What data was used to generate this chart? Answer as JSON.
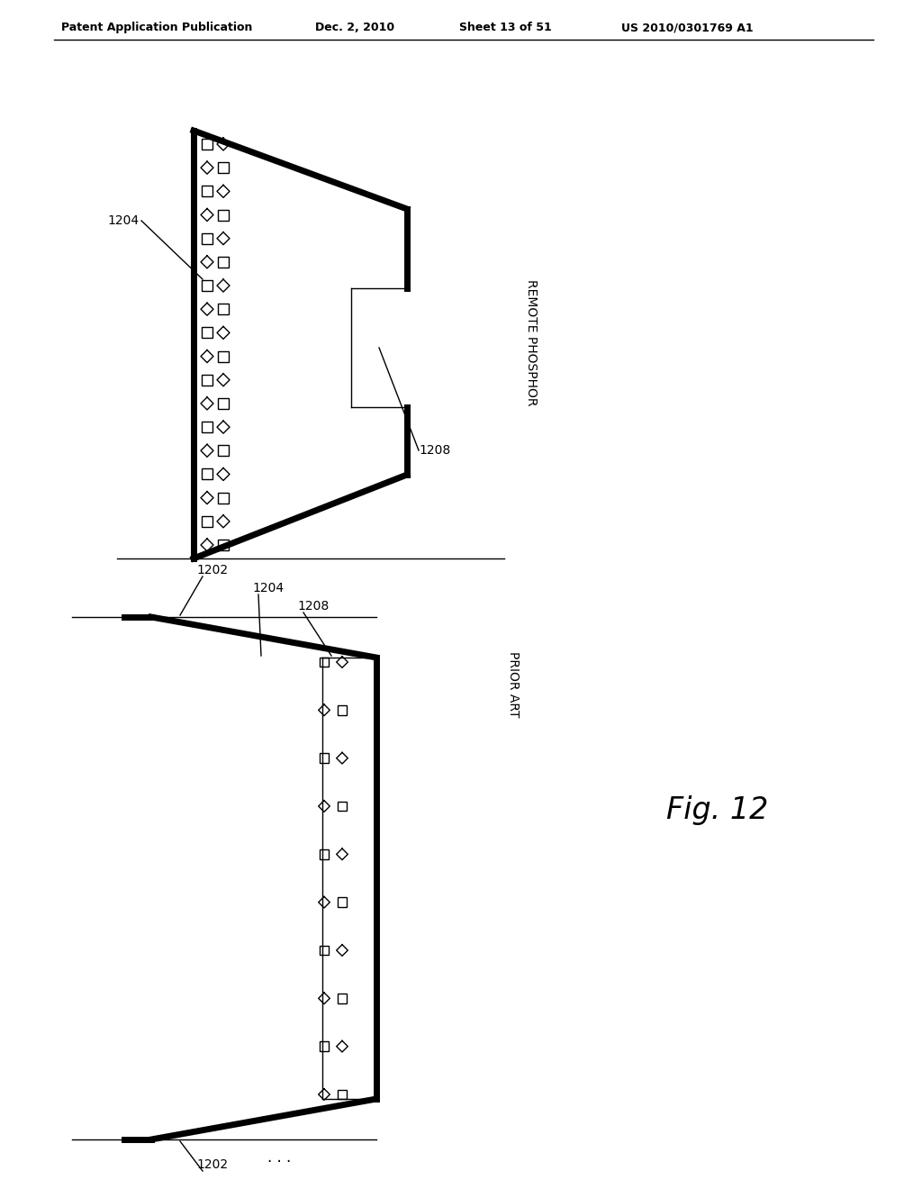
{
  "title_left": "Patent Application Publication",
  "title_mid": "Dec. 2, 2010",
  "title_right_1": "Sheet 13 of 51",
  "title_right_2": "US 2010/0301769 A1",
  "fig_label": "Fig. 12",
  "bg_color": "#ffffff",
  "line_color": "#000000",
  "thick_lw": 5.0,
  "thin_lw": 1.0,
  "chip_size_d": 14,
  "chip_size_s": 12
}
